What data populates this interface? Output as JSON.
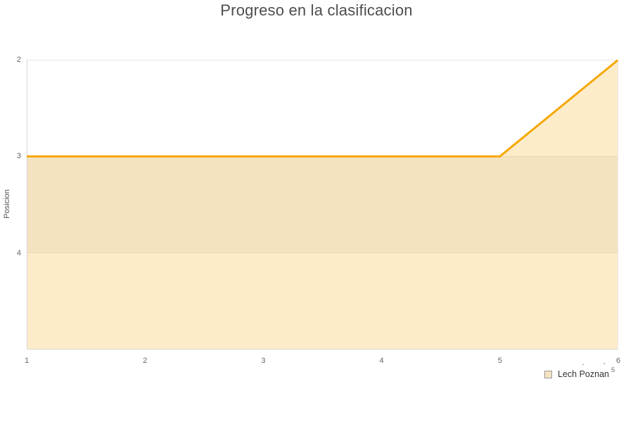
{
  "title": "Progreso en la clasificacion",
  "chart_data": {
    "type": "area",
    "title": "Progreso en la clasificacion",
    "x": [
      1,
      2,
      3,
      4,
      5,
      6
    ],
    "series": [
      {
        "name": "Lech Poznan",
        "values": [
          3,
          3,
          3,
          3,
          3,
          2
        ]
      }
    ],
    "xlabel": "",
    "ylabel": "Posicion",
    "xlim": [
      1,
      6
    ],
    "ylim": [
      2,
      5
    ],
    "y_reversed": true,
    "x_ticks": [
      1,
      2,
      3,
      4,
      5,
      6
    ],
    "y_ticks": [
      2,
      3,
      4
    ],
    "grid": "horizontal",
    "legend_position": "bottom-right",
    "alternate_band": {
      "from": 3,
      "to": 4,
      "color": "#f4f4f4"
    },
    "colors": {
      "line": "#f6a702",
      "fill": "rgba(246,167,2,0.21)",
      "grid": "#e6e6e6",
      "axis": "#d6d6d6"
    }
  },
  "legend": {
    "items": [
      {
        "label": "Lech Poznan",
        "swatch_fill": "#f5e3c2",
        "swatch_border": "#9a9a9a"
      }
    ]
  },
  "annotations": {
    "superscript": "5",
    "mark_dot": "·",
    "mark_tick": "'"
  }
}
